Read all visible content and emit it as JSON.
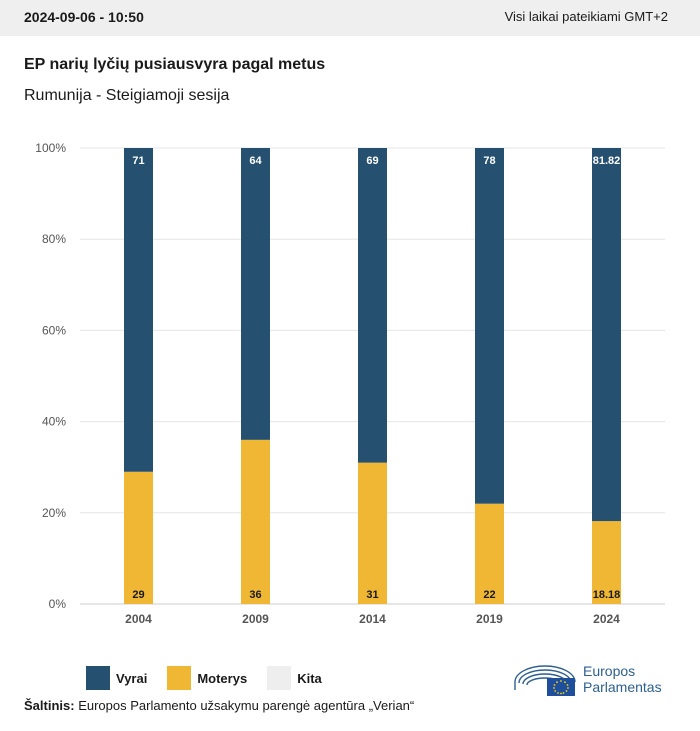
{
  "header": {
    "date": "2024-09-06 - 10:50",
    "timezone_note": "Visi laikai pateikiami GMT+2"
  },
  "title": "EP narių lyčių pusiausvyra pagal metus",
  "subtitle": "Rumunija - Steigiamoji sesija",
  "colors": {
    "vyrai": "#25506f",
    "moterys": "#efb734",
    "kita": "#eeeeee",
    "logo": "#2e5f8e"
  },
  "chart_data": {
    "type": "bar",
    "stacked": true,
    "categories": [
      "2004",
      "2009",
      "2014",
      "2019",
      "2024"
    ],
    "series": [
      {
        "name": "Moterys",
        "values": [
          29,
          36,
          31,
          22,
          18.18
        ],
        "labels": [
          "29",
          "36",
          "31",
          "22",
          "18.18"
        ]
      },
      {
        "name": "Vyrai",
        "values": [
          71,
          64,
          69,
          78,
          81.82
        ],
        "labels": [
          "71",
          "64",
          "69",
          "78",
          "81.82"
        ]
      }
    ],
    "ylim": [
      0,
      100
    ],
    "yticks": [
      "0%",
      "20%",
      "40%",
      "60%",
      "80%",
      "100%"
    ],
    "grid": true
  },
  "legend": [
    {
      "label": "Vyrai",
      "color": "#25506f"
    },
    {
      "label": "Moterys",
      "color": "#efb734"
    },
    {
      "label": "Kita",
      "color": "#eeeeee"
    }
  ],
  "source": {
    "label": "Šaltinis:",
    "text": "Europos Parlamento užsakymu parengė agentūra „Verian“"
  },
  "logo": {
    "line1": "Europos",
    "line2": "Parlamentas",
    "icon": "ep-logo-icon"
  }
}
